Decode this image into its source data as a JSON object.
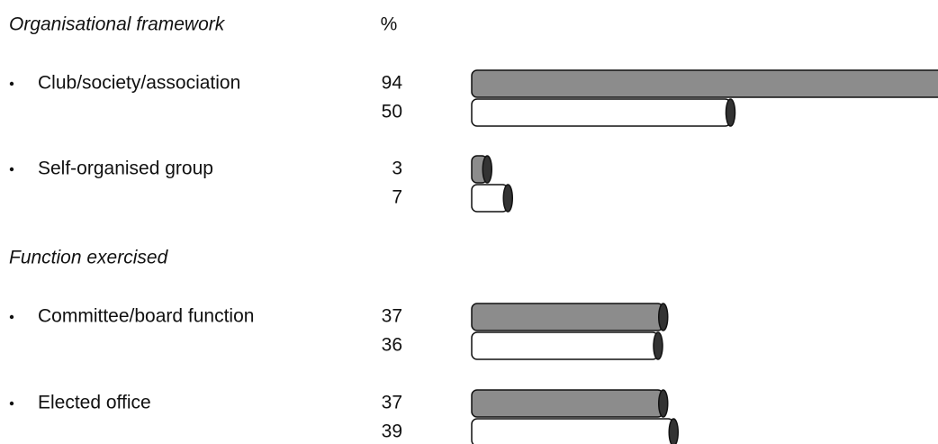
{
  "chart_data": {
    "type": "bar",
    "orientation": "horizontal",
    "unit_label": "%",
    "sections": [
      {
        "title": "Organisational framework",
        "categories": [
          "Club/society/association",
          "Self-organised group"
        ]
      },
      {
        "title": "Function exercised",
        "categories": [
          "Committee/board function",
          "Elected office"
        ]
      }
    ],
    "series": [
      {
        "color": "#8c8c8c",
        "values": [
          94,
          3,
          37,
          37
        ]
      },
      {
        "color": "#ffffff",
        "values": [
          50,
          7,
          36,
          39
        ]
      }
    ]
  }
}
